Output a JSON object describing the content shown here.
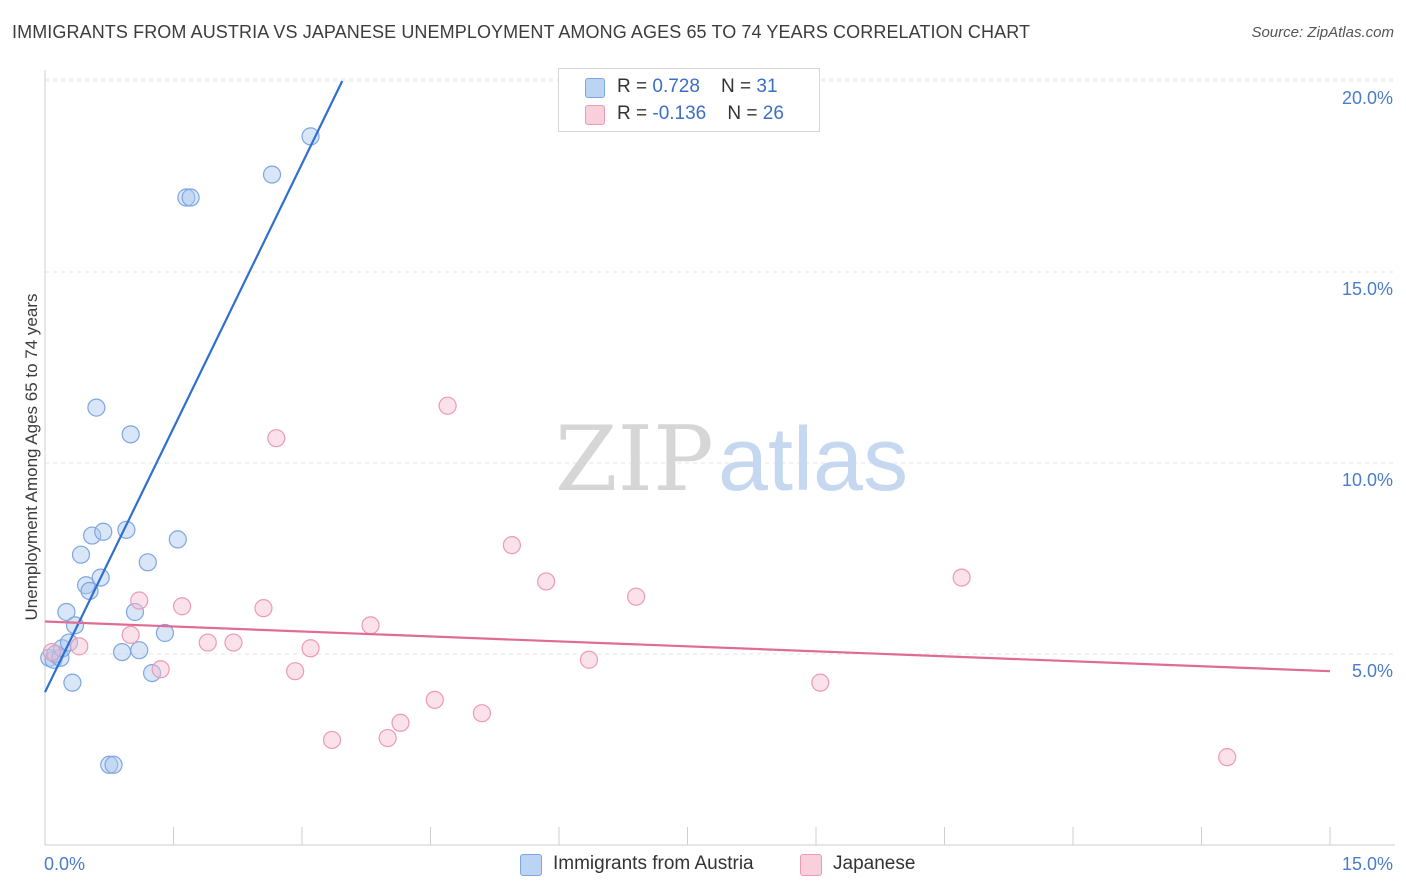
{
  "title": "IMMIGRANTS FROM AUSTRIA VS JAPANESE UNEMPLOYMENT AMONG AGES 65 TO 74 YEARS CORRELATION CHART",
  "source": "Source: ZipAtlas.com",
  "watermark": {
    "zip": "ZIP",
    "atlas": "atlas"
  },
  "colors": {
    "austria": "#a9c8f0",
    "austria_line": "#2f6fcf",
    "japanese": "#f6bfd0",
    "japanese_line": "#e06b95",
    "tick_text": "#4a7cc7"
  },
  "legend_top": [
    {
      "series": "austria",
      "r_label": "R = ",
      "r_value": "0.728",
      "n_label": "N = ",
      "n_value": "31"
    },
    {
      "series": "japanese",
      "r_label": "R = ",
      "r_value": "-0.136",
      "n_label": "N = ",
      "n_value": "26"
    }
  ],
  "chart_data": {
    "type": "scatter",
    "title": "IMMIGRANTS FROM AUSTRIA VS JAPANESE UNEMPLOYMENT AMONG AGES 65 TO 74 YEARS CORRELATION CHART",
    "xlabel": "",
    "ylabel": "Unemployment Among Ages 65 to 74 years",
    "xlim": [
      0,
      15
    ],
    "ylim": [
      0,
      20.5
    ],
    "x_tick_labels": [
      "0.0%",
      "15.0%"
    ],
    "y_ticks": [
      5,
      10,
      15,
      20
    ],
    "y_tick_labels": [
      "5.0%",
      "10.0%",
      "15.0%",
      "20.0%"
    ],
    "series": [
      {
        "name": "Immigrants from Austria",
        "key": "austria",
        "trend": {
          "x": [
            0.0,
            3.47
          ],
          "y": [
            4.0,
            20.0
          ]
        },
        "points": [
          {
            "x": 0.05,
            "y": 4.9
          },
          {
            "x": 0.1,
            "y": 4.85
          },
          {
            "x": 0.12,
            "y": 5.0
          },
          {
            "x": 0.18,
            "y": 4.9
          },
          {
            "x": 0.2,
            "y": 5.15
          },
          {
            "x": 0.25,
            "y": 6.1
          },
          {
            "x": 0.28,
            "y": 5.3
          },
          {
            "x": 0.32,
            "y": 4.25
          },
          {
            "x": 0.35,
            "y": 5.75
          },
          {
            "x": 0.42,
            "y": 7.6
          },
          {
            "x": 0.48,
            "y": 6.8
          },
          {
            "x": 0.52,
            "y": 6.65
          },
          {
            "x": 0.55,
            "y": 8.1
          },
          {
            "x": 0.6,
            "y": 11.45
          },
          {
            "x": 0.65,
            "y": 7.0
          },
          {
            "x": 0.68,
            "y": 8.2
          },
          {
            "x": 0.75,
            "y": 2.1
          },
          {
            "x": 0.8,
            "y": 2.1
          },
          {
            "x": 0.9,
            "y": 5.05
          },
          {
            "x": 0.95,
            "y": 8.25
          },
          {
            "x": 1.0,
            "y": 10.75
          },
          {
            "x": 1.05,
            "y": 6.1
          },
          {
            "x": 1.1,
            "y": 5.1
          },
          {
            "x": 1.2,
            "y": 7.4
          },
          {
            "x": 1.25,
            "y": 4.5
          },
          {
            "x": 1.4,
            "y": 5.55
          },
          {
            "x": 1.55,
            "y": 8.0
          },
          {
            "x": 1.65,
            "y": 16.95
          },
          {
            "x": 1.7,
            "y": 16.95
          },
          {
            "x": 2.65,
            "y": 17.55
          },
          {
            "x": 3.1,
            "y": 18.55
          }
        ]
      },
      {
        "name": "Japanese",
        "key": "japanese",
        "trend": {
          "x": [
            0.0,
            15.0
          ],
          "y": [
            5.85,
            4.55
          ]
        },
        "points": [
          {
            "x": 0.08,
            "y": 5.05
          },
          {
            "x": 0.4,
            "y": 5.2
          },
          {
            "x": 1.0,
            "y": 5.5
          },
          {
            "x": 1.1,
            "y": 6.4
          },
          {
            "x": 1.35,
            "y": 4.6
          },
          {
            "x": 1.6,
            "y": 6.25
          },
          {
            "x": 1.9,
            "y": 5.3
          },
          {
            "x": 2.2,
            "y": 5.3
          },
          {
            "x": 2.55,
            "y": 6.2
          },
          {
            "x": 2.7,
            "y": 10.65
          },
          {
            "x": 2.92,
            "y": 4.55
          },
          {
            "x": 3.1,
            "y": 5.15
          },
          {
            "x": 3.35,
            "y": 2.75
          },
          {
            "x": 3.8,
            "y": 5.75
          },
          {
            "x": 4.0,
            "y": 2.8
          },
          {
            "x": 4.15,
            "y": 3.2
          },
          {
            "x": 4.55,
            "y": 3.8
          },
          {
            "x": 4.7,
            "y": 11.5
          },
          {
            "x": 5.1,
            "y": 3.45
          },
          {
            "x": 5.45,
            "y": 7.85
          },
          {
            "x": 5.85,
            "y": 6.9
          },
          {
            "x": 6.35,
            "y": 4.85
          },
          {
            "x": 6.9,
            "y": 6.5
          },
          {
            "x": 9.05,
            "y": 4.25
          },
          {
            "x": 10.7,
            "y": 7.0
          },
          {
            "x": 13.8,
            "y": 2.3
          }
        ]
      }
    ],
    "legend": [
      "Immigrants from Austria",
      "Japanese"
    ],
    "legend_position": "bottom-center"
  }
}
